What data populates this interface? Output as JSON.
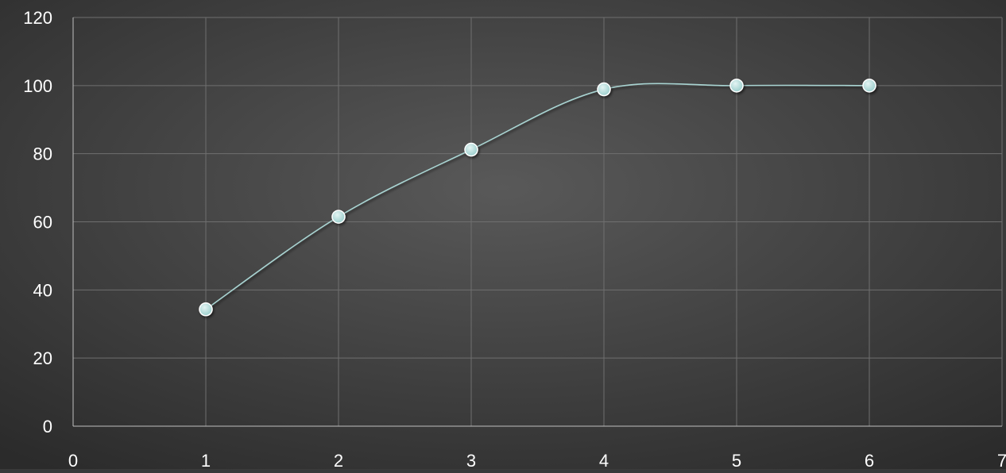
{
  "chart_data": {
    "type": "scatter",
    "smooth": true,
    "x": [
      1,
      2,
      3,
      4,
      5,
      6
    ],
    "y": [
      34.3,
      61.5,
      81.2,
      98.9,
      100,
      100
    ],
    "xlim": [
      0,
      7
    ],
    "ylim": [
      0,
      120
    ],
    "x_ticks": [
      0,
      1,
      2,
      3,
      4,
      5,
      6,
      7
    ],
    "y_ticks": [
      0,
      20,
      40,
      60,
      80,
      100,
      120
    ],
    "x_tick_labels": [
      "0",
      "1",
      "2",
      "3",
      "4",
      "5",
      "6",
      "7"
    ],
    "y_tick_labels": [
      "0",
      "20",
      "40",
      "60",
      "80",
      "100",
      "120"
    ],
    "grid": true,
    "legend": "none"
  },
  "colors": {
    "background_center": "#595959",
    "background_edge": "#2b2b2b",
    "grid": "#6f6f6f",
    "axis": "#bfbfbf",
    "line": "#a8d3d1",
    "marker": "#9ccfcd",
    "text": "#ffffff"
  }
}
